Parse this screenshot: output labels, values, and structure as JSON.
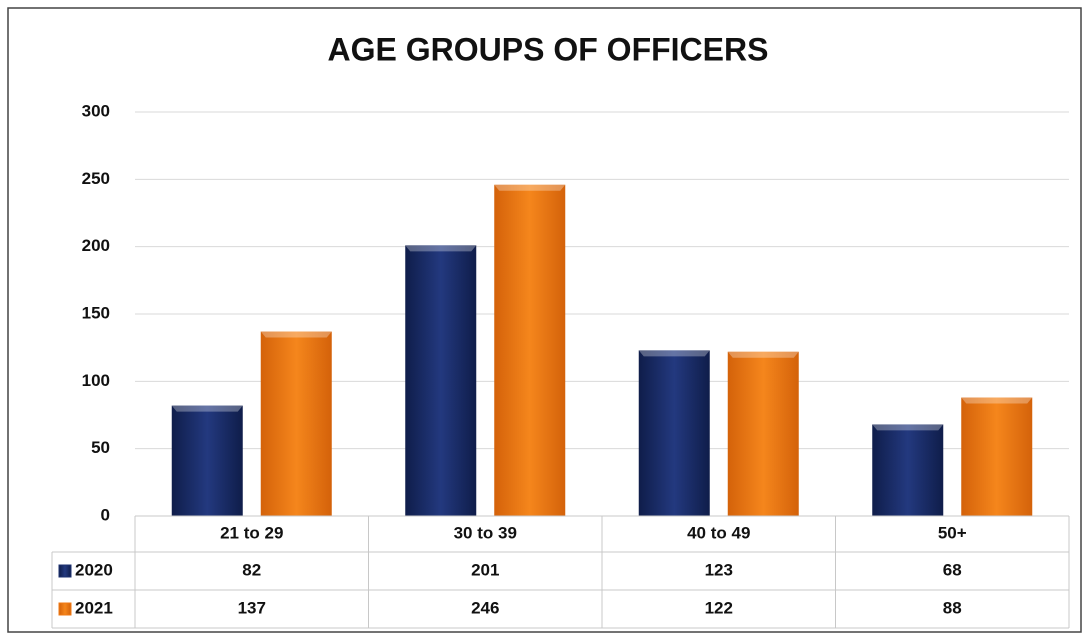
{
  "chart_data": {
    "type": "bar",
    "title": "AGE GROUPS OF OFFICERS",
    "categories": [
      "21 to 29",
      "30 to 39",
      "40 to 49",
      "50+"
    ],
    "series": [
      {
        "name": "2020",
        "color": "#1d3170",
        "values": [
          82,
          201,
          123,
          68
        ]
      },
      {
        "name": "2021",
        "color": "#f07a14",
        "values": [
          137,
          246,
          122,
          88
        ]
      }
    ],
    "ylim": [
      0,
      300
    ],
    "yticks": [
      0,
      50,
      100,
      150,
      200,
      250,
      300
    ],
    "grid": true,
    "data_table": true
  }
}
